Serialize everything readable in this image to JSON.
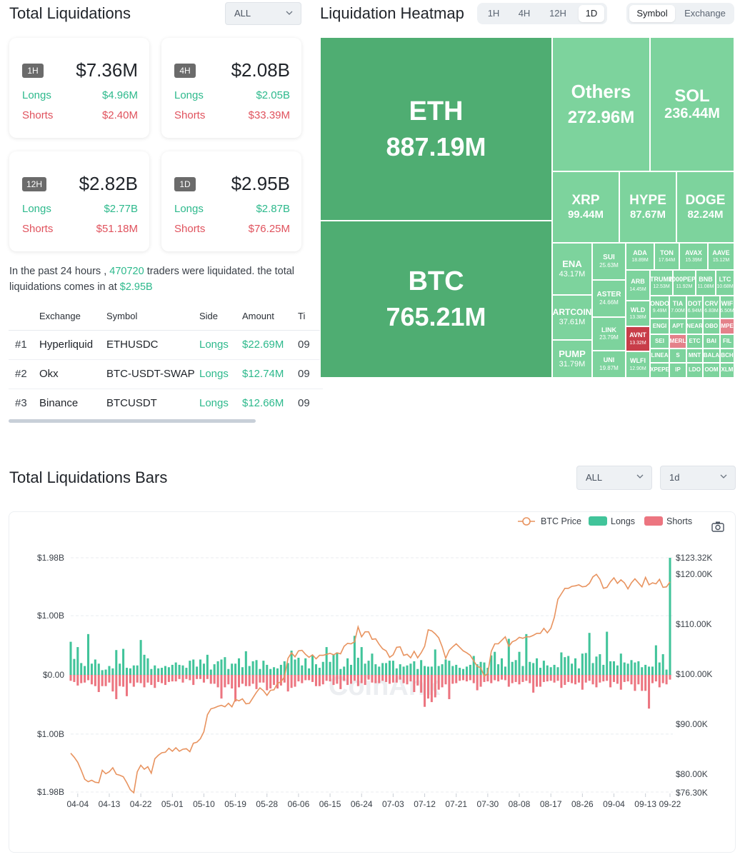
{
  "summary": {
    "title": "Total Liquidations",
    "filter": "ALL",
    "cards": [
      {
        "period": "1H",
        "total": "$7.36M",
        "longs_label": "Longs",
        "longs": "$4.96M",
        "shorts_label": "Shorts",
        "shorts": "$2.40M"
      },
      {
        "period": "4H",
        "total": "$2.08B",
        "longs_label": "Longs",
        "longs": "$2.05B",
        "shorts_label": "Shorts",
        "shorts": "$33.39M"
      },
      {
        "period": "12H",
        "total": "$2.82B",
        "longs_label": "Longs",
        "longs": "$2.77B",
        "shorts_label": "Shorts",
        "shorts": "$51.18M"
      },
      {
        "period": "1D",
        "total": "$2.95B",
        "longs_label": "Longs",
        "longs": "$2.87B",
        "shorts_label": "Shorts",
        "shorts": "$76.25M"
      }
    ],
    "note_pre": "In the past 24 hours ,",
    "note_traders": "470720",
    "note_mid": "traders were liquidated. the total liquidations comes in at",
    "note_total": "$2.95B"
  },
  "table": {
    "headers": [
      "Exchange",
      "Symbol",
      "Side",
      "Amount",
      "Ti"
    ],
    "rows": [
      {
        "rank": "#1",
        "exchange": "Hyperliquid",
        "symbol": "ETHUSDC",
        "side": "Longs",
        "amount": "$22.69M",
        "time": "09"
      },
      {
        "rank": "#2",
        "exchange": "Okx",
        "symbol": "BTC-USDT-SWAP",
        "side": "Longs",
        "amount": "$12.74M",
        "time": "09"
      },
      {
        "rank": "#3",
        "exchange": "Binance",
        "symbol": "BTCUSDT",
        "side": "Longs",
        "amount": "$12.66M",
        "time": "09"
      }
    ]
  },
  "heatmap": {
    "title": "Liquidation Heatmap",
    "periods": [
      "1H",
      "4H",
      "12H",
      "1D"
    ],
    "active_period": "1D",
    "modes": [
      "Symbol",
      "Exchange"
    ],
    "active_mode": "Symbol",
    "tiles": [
      {
        "symbol": "ETH",
        "value": "887.19M"
      },
      {
        "symbol": "BTC",
        "value": "765.21M"
      },
      {
        "symbol": "Others",
        "value": "272.96M"
      },
      {
        "symbol": "SOL",
        "value": "236.44M"
      },
      {
        "symbol": "XRP",
        "value": "99.44M"
      },
      {
        "symbol": "HYPE",
        "value": "87.67M"
      },
      {
        "symbol": "DOGE",
        "value": "82.24M"
      },
      {
        "symbol": "ENA",
        "value": "43.17M"
      },
      {
        "symbol": "ARTCOIN",
        "value": "37.61M"
      },
      {
        "symbol": "PUMP",
        "value": "31.79M"
      },
      {
        "symbol": "SUI",
        "value": "25.63M"
      },
      {
        "symbol": "ASTER",
        "value": "24.66M"
      },
      {
        "symbol": "LINK",
        "value": "23.79M"
      },
      {
        "symbol": "UNI",
        "value": "19.87M"
      },
      {
        "symbol": "ADA",
        "value": "18.89M"
      },
      {
        "symbol": "TON",
        "value": "17.64M"
      },
      {
        "symbol": "AVAX",
        "value": "15.39M"
      },
      {
        "symbol": "AAVE",
        "value": "15.12M"
      },
      {
        "symbol": "ARB",
        "value": "14.45M"
      },
      {
        "symbol": "WLD",
        "value": "13.38M"
      },
      {
        "symbol": "AVNT",
        "value": "13.32M"
      },
      {
        "symbol": "WLFI",
        "value": "12.90M"
      },
      {
        "symbol": "TRUMP",
        "value": "12.53M"
      },
      {
        "symbol": "1000PEPE",
        "value": "11.92M"
      },
      {
        "symbol": "BNB",
        "value": "11.08M"
      },
      {
        "symbol": "LTC",
        "value": "10.68M"
      },
      {
        "symbol": "ONDO",
        "value": "9.49M"
      },
      {
        "symbol": "TIA",
        "value": "7.00M"
      },
      {
        "symbol": "DOT",
        "value": "6.94M"
      },
      {
        "symbol": "CRV",
        "value": "6.83M"
      },
      {
        "symbol": "WIF",
        "value": "6.50M"
      },
      {
        "symbol": "ENGI"
      },
      {
        "symbol": "APT"
      },
      {
        "symbol": "NEAR"
      },
      {
        "symbol": "OBO"
      },
      {
        "symbol": "MPE"
      },
      {
        "symbol": "SEI"
      },
      {
        "symbol": "MERL"
      },
      {
        "symbol": "ETC"
      },
      {
        "symbol": "BAI"
      },
      {
        "symbol": "FIL"
      },
      {
        "symbol": "LINEA"
      },
      {
        "symbol": "S"
      },
      {
        "symbol": "MNT"
      },
      {
        "symbol": "BALA"
      },
      {
        "symbol": "XPEPE"
      },
      {
        "symbol": "IP"
      },
      {
        "symbol": "LDO"
      },
      {
        "symbol": "OOM"
      },
      {
        "symbol": "BCH"
      },
      {
        "symbol": "XLM"
      }
    ],
    "colors": {
      "green": "#4fad72",
      "light_green": "#7dd39d",
      "red": "#c83d49",
      "light_red": "#e4818a"
    }
  },
  "bars": {
    "title": "Total Liquidations Bars",
    "filter": "ALL",
    "interval": "1d",
    "watermark": "CoinAnk"
  },
  "chart_data": {
    "type": "bar",
    "title": "Total Liquidations Bars",
    "legend": [
      "BTC Price",
      "Longs",
      "Shorts"
    ],
    "legend_position": "top-right",
    "x_tick_labels": [
      "04-04",
      "04-13",
      "04-22",
      "05-01",
      "05-10",
      "05-19",
      "05-28",
      "06-06",
      "06-15",
      "06-24",
      "07-03",
      "07-12",
      "07-21",
      "07-30",
      "08-08",
      "08-17",
      "08-26",
      "09-04",
      "09-13",
      "09-22"
    ],
    "left_axis_labels": [
      "$1.98B",
      "$1.00B",
      "$0.00",
      "$1.00B",
      "$1.98B"
    ],
    "right_axis_labels": [
      "$123.32K",
      "$120.00K",
      "$110.00K",
      "$100.00K",
      "$90.00K",
      "$80.00K",
      "$76.30K"
    ],
    "y_left_range": [
      -1.98,
      1.98
    ],
    "y_right_range": [
      76.3,
      123.32
    ],
    "y_left_units": "USD billions (liquidations, longs positive, shorts negative)",
    "y_right_units": "BTC price, USD thousands",
    "days": 172,
    "start_date": "04-02",
    "longs": [
      0.56,
      0.27,
      0.47,
      0.2,
      0.15,
      0.69,
      0.19,
      0.26,
      0.19,
      0.08,
      0.09,
      0.15,
      0.11,
      0.42,
      0.19,
      0.44,
      0.12,
      0.11,
      0.16,
      0.16,
      0.59,
      0.34,
      0.28,
      0.1,
      0.16,
      0.11,
      0.12,
      0.15,
      0.13,
      0.17,
      0.21,
      0.17,
      0.16,
      0.12,
      0.24,
      0.26,
      0.14,
      0.26,
      0.19,
      0.34,
      0.09,
      0.18,
      0.23,
      0.26,
      0.3,
      0.1,
      0.19,
      0.19,
      0.28,
      0.13,
      0.4,
      0.15,
      0.23,
      0.25,
      0.1,
      0.24,
      0.17,
      0.1,
      0.13,
      0.11,
      0.17,
      0.23,
      0.2,
      0.41,
      0.26,
      0.29,
      0.16,
      0.28,
      0.11,
      0.33,
      0.18,
      0.12,
      0.22,
      0.47,
      0.22,
      0.34,
      0.38,
      0.1,
      0.14,
      0.28,
      0.17,
      0.66,
      0.29,
      0.47,
      0.19,
      0.24,
      0.36,
      0.18,
      0.14,
      0.2,
      0.2,
      0.24,
      0.24,
      0.11,
      0.18,
      0.14,
      0.16,
      0.19,
      0.23,
      0.1,
      0.25,
      0.15,
      0.14,
      0.14,
      0.43,
      0.15,
      0.18,
      0.26,
      0.24,
      0.15,
      0.17,
      0.12,
      0.1,
      0.14,
      0.17,
      0.32,
      0.18,
      0.22,
      0.21,
      0.12,
      0.33,
      0.39,
      0.18,
      0.28,
      0.14,
      0.61,
      0.22,
      0.25,
      0.39,
      0.15,
      0.69,
      0.22,
      0.2,
      0.28,
      0.12,
      0.24,
      0.16,
      0.13,
      0.17,
      0.13,
      0.38,
      0.3,
      0.32,
      0.19,
      0.28,
      0.11,
      0.36,
      0.37,
      0.71,
      0.2,
      0.31,
      0.35,
      0.17,
      0.73,
      0.23,
      0.23,
      0.16,
      0.36,
      0.21,
      0.19,
      0.25,
      0.21,
      0.23,
      0.13,
      0.17,
      0.14,
      0.14,
      0.5,
      0.21,
      0.35,
      0.09,
      1.98
    ],
    "shorts": [
      0.1,
      0.12,
      0.18,
      0.14,
      0.13,
      0.09,
      0.16,
      0.19,
      0.29,
      0.19,
      0.19,
      0.13,
      0.28,
      0.41,
      0.19,
      0.2,
      0.36,
      0.14,
      0.2,
      0.13,
      0.14,
      0.21,
      0.13,
      0.17,
      0.22,
      0.12,
      0.14,
      0.17,
      0.12,
      0.11,
      0.11,
      0.07,
      0.13,
      0.07,
      0.09,
      0.17,
      0.07,
      0.07,
      0.13,
      0.07,
      0.15,
      0.15,
      0.21,
      0.4,
      0.21,
      0.16,
      0.23,
      0.45,
      0.21,
      0.15,
      0.19,
      0.19,
      0.15,
      0.24,
      0.13,
      0.13,
      0.26,
      0.23,
      0.17,
      0.23,
      0.18,
      0.13,
      0.28,
      0.22,
      0.2,
      0.11,
      0.14,
      0.09,
      0.09,
      0.12,
      0.19,
      0.19,
      0.16,
      0.1,
      0.11,
      0.17,
      0.15,
      0.24,
      0.1,
      0.17,
      0.15,
      0.1,
      0.19,
      0.14,
      0.17,
      0.08,
      0.13,
      0.14,
      0.14,
      0.1,
      0.12,
      0.15,
      0.13,
      0.13,
      0.08,
      0.14,
      0.16,
      0.11,
      0.29,
      0.18,
      0.3,
      0.54,
      0.4,
      0.46,
      0.38,
      0.25,
      0.21,
      0.16,
      0.41,
      0.15,
      0.14,
      0.1,
      0.09,
      0.11,
      0.09,
      0.14,
      0.26,
      0.2,
      0.12,
      0.11,
      0.14,
      0.09,
      0.11,
      0.08,
      0.09,
      0.2,
      0.14,
      0.12,
      0.16,
      0.12,
      0.1,
      0.14,
      0.3,
      0.2,
      0.2,
      0.12,
      0.11,
      0.1,
      0.13,
      0.1,
      0.22,
      0.17,
      0.12,
      0.14,
      0.16,
      0.13,
      0.25,
      0.13,
      0.1,
      0.16,
      0.21,
      0.13,
      0.11,
      0.1,
      0.21,
      0.12,
      0.15,
      0.25,
      0.12,
      0.11,
      0.16,
      0.27,
      0.16,
      0.27,
      0.27,
      0.57,
      0.14,
      0.11,
      0.21,
      0.14,
      0.16,
      0.08
    ],
    "btc_price": [
      84.2,
      83.4,
      82.4,
      80.8,
      79.0,
      78.5,
      78.8,
      78.4,
      78.3,
      80.8,
      80.1,
      80.5,
      81.3,
      80.0,
      79.8,
      79.5,
      78.3,
      76.9,
      76.3,
      80.5,
      81.8,
      81.0,
      81.5,
      80.2,
      83.1,
      83.8,
      84.3,
      84.4,
      85.2,
      84.6,
      85.3,
      84.6,
      85.0,
      85.1,
      84.5,
      86.2,
      86.4,
      87.1,
      88.5,
      91.9,
      93.1,
      93.3,
      93.6,
      93.8,
      93.5,
      94.2,
      93.5,
      95.0,
      94.7,
      95.1,
      94.1,
      94.2,
      95.3,
      96.4,
      97.3,
      96.7,
      95.8,
      96.8,
      96.9,
      98.2,
      98.5,
      99.5,
      103.2,
      104.3,
      103.5,
      104.7,
      104.8,
      104.0,
      103.4,
      103.9,
      103.1,
      103.8,
      103.8,
      104.0,
      104.2,
      103.9,
      104.3,
      104.1,
      105.6,
      106.2,
      106.1,
      106.5,
      109.5,
      107.5,
      108.5,
      108.5,
      107.0,
      107.1,
      106.0,
      105.1,
      104.7,
      103.4,
      103.9,
      105.4,
      105.5,
      103.8,
      104.0,
      103.3,
      104.6,
      103.3,
      104.3,
      105.6,
      108.9,
      108.7,
      108.1,
      107.3,
      105.5,
      103.2,
      104.8,
      105.5,
      106.1,
      105.4,
      104.7,
      104.3,
      103.8,
      102.7,
      101.6,
      101.3,
      99.6,
      100.2,
      104.6,
      106.1,
      106.1,
      106.8,
      107.5,
      105.6,
      106.5,
      106.8,
      107.4,
      107.2,
      107.5,
      107.5,
      107.8,
      108.2,
      108.2,
      109.2,
      108.3,
      109.2,
      111.4,
      115.0,
      116.1,
      117.2,
      117.2,
      117.6,
      117.7,
      117.9,
      117.5,
      117.6,
      118.2,
      119.5,
      120.0,
      119.0,
      117.2,
      117.4,
      118.5,
      119.3,
      118.2,
      118.9,
      118.3,
      117.1,
      118.3,
      119.1,
      118.3,
      117.5,
      119.4,
      117.9,
      118.3,
      118.1,
      119.0,
      117.4,
      117.5,
      118.5
    ]
  }
}
